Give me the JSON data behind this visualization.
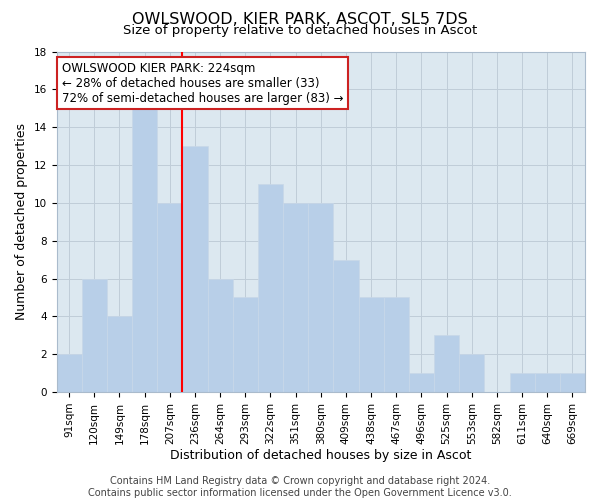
{
  "title": "OWLSWOOD, KIER PARK, ASCOT, SL5 7DS",
  "subtitle": "Size of property relative to detached houses in Ascot",
  "xlabel": "Distribution of detached houses by size in Ascot",
  "ylabel": "Number of detached properties",
  "bar_labels": [
    "91sqm",
    "120sqm",
    "149sqm",
    "178sqm",
    "207sqm",
    "236sqm",
    "264sqm",
    "293sqm",
    "322sqm",
    "351sqm",
    "380sqm",
    "409sqm",
    "438sqm",
    "467sqm",
    "496sqm",
    "525sqm",
    "553sqm",
    "582sqm",
    "611sqm",
    "640sqm",
    "669sqm"
  ],
  "bar_values": [
    2,
    6,
    4,
    15,
    10,
    13,
    6,
    5,
    11,
    10,
    10,
    7,
    5,
    5,
    1,
    3,
    2,
    0,
    1,
    1,
    1
  ],
  "bar_color": "#b8cfe8",
  "bar_edge_color": "#c8d8e8",
  "plot_bg_color": "#dce8f0",
  "background_color": "#ffffff",
  "grid_color": "#c0cdd8",
  "red_line_x": 4.5,
  "ann_line1": "OWLSWOOD KIER PARK: 224sqm",
  "ann_line2": "← 28% of detached houses are smaller (33)",
  "ann_line3": "72% of semi-detached houses are larger (83) →",
  "footer_text": "Contains HM Land Registry data © Crown copyright and database right 2024.\nContains public sector information licensed under the Open Government Licence v3.0.",
  "ylim": [
    0,
    18
  ],
  "title_fontsize": 11.5,
  "subtitle_fontsize": 9.5,
  "axis_label_fontsize": 9,
  "tick_fontsize": 7.5,
  "annotation_fontsize": 8.5,
  "footer_fontsize": 7
}
